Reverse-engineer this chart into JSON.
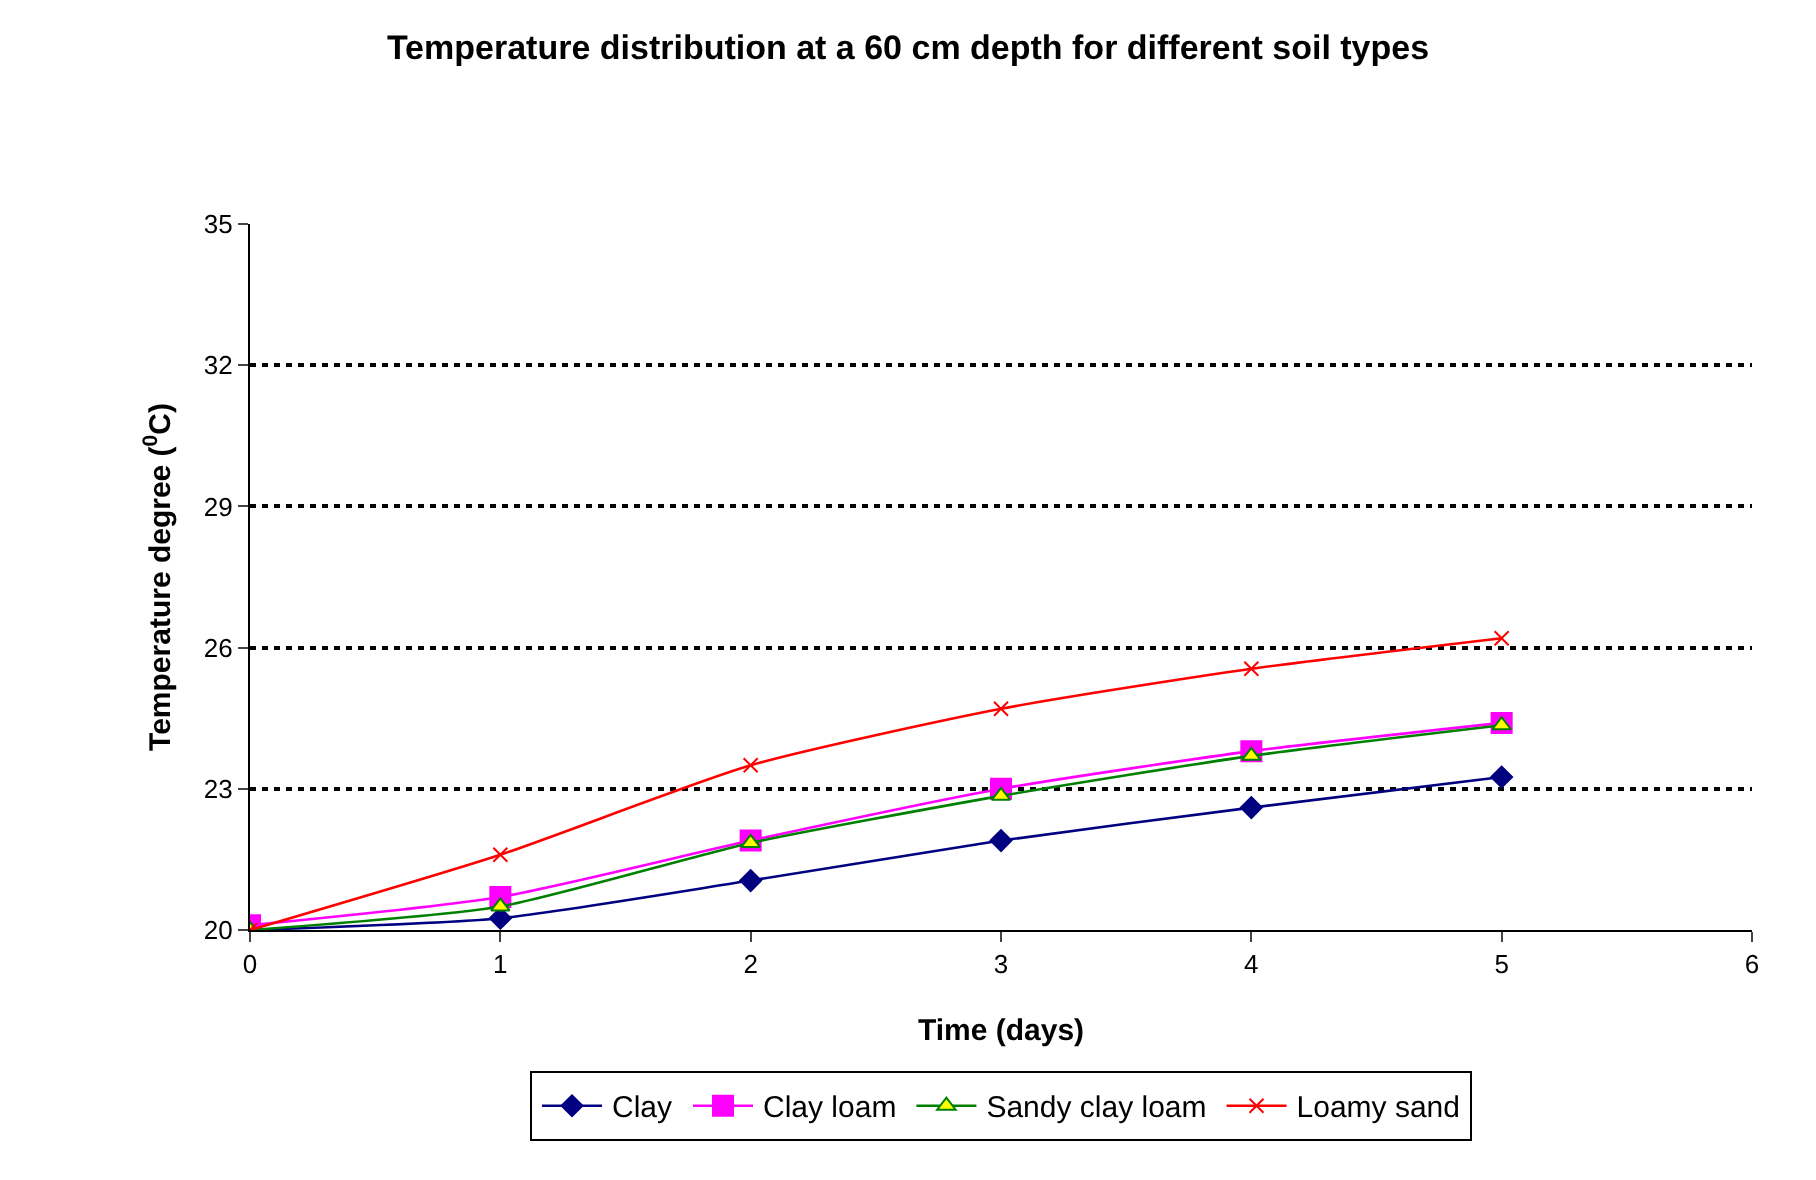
{
  "chart_data": {
    "type": "line",
    "title": "Temperature distribution at a 60 cm depth for different soil types",
    "xlabel": "Time (days)",
    "ylabel": "Temperature degree ($^{0}$C)",
    "x": [
      0,
      1,
      2,
      3,
      4,
      5
    ],
    "series": [
      {
        "name": "Clay",
        "color": "#000080",
        "marker": "diamond",
        "values": [
          20,
          20.25,
          21.05,
          21.9,
          22.6,
          23.25
        ]
      },
      {
        "name": "Clay loam",
        "color": "#ff00ff",
        "marker": "square",
        "values": [
          20.1,
          20.7,
          21.9,
          23.0,
          23.8,
          24.4
        ]
      },
      {
        "name": "Sandy clay loam",
        "color": "#008000",
        "marker": "triangle",
        "values": [
          20.0,
          20.5,
          21.85,
          22.85,
          23.7,
          24.35
        ]
      },
      {
        "name": "Loamy sand",
        "color": "#ff0000",
        "marker": "cross",
        "values": [
          20.0,
          21.6,
          23.5,
          24.7,
          25.55,
          26.2
        ]
      }
    ],
    "xlim": [
      0,
      6
    ],
    "xticks": [
      0,
      1,
      2,
      3,
      4,
      5,
      6
    ],
    "ylim": [
      20,
      35
    ],
    "yticks": [
      20,
      23,
      26,
      29,
      32,
      35
    ],
    "grid": "y",
    "legend": "bottom",
    "line_style": "solid"
  }
}
